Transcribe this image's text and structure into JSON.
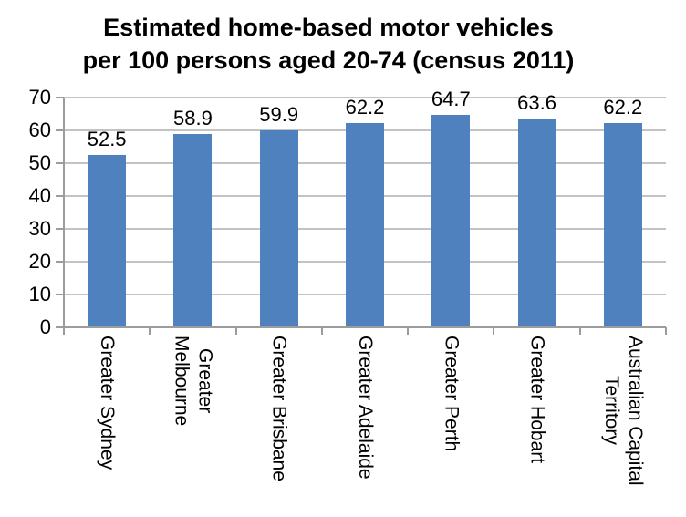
{
  "chart_data": {
    "type": "bar",
    "title_line1": "Estimated home-based motor vehicles",
    "title_line2": "per 100 persons aged 20-74 (census 2011)",
    "categories": [
      "Greater Sydney",
      "Greater\nMelbourne",
      "Greater Brisbane",
      "Greater Adelaide",
      "Greater Perth",
      "Greater Hobart",
      "Australian Capital\nTerritory"
    ],
    "values": [
      52.5,
      58.9,
      59.9,
      62.2,
      64.7,
      63.6,
      62.2
    ],
    "data_labels": [
      "52.5",
      "58.9",
      "59.9",
      "62.2",
      "64.7",
      "63.6",
      "62.2"
    ],
    "xlabel": "",
    "ylabel": "",
    "ylim": [
      0,
      70
    ],
    "yticks": [
      0,
      10,
      20,
      30,
      40,
      50,
      60,
      70
    ],
    "grid": true,
    "legend": "none",
    "bar_color": "#4E81BD",
    "gridline_color": "#C3C3C3",
    "axis_color": "#9C9C9C",
    "text_color": "#000000"
  }
}
